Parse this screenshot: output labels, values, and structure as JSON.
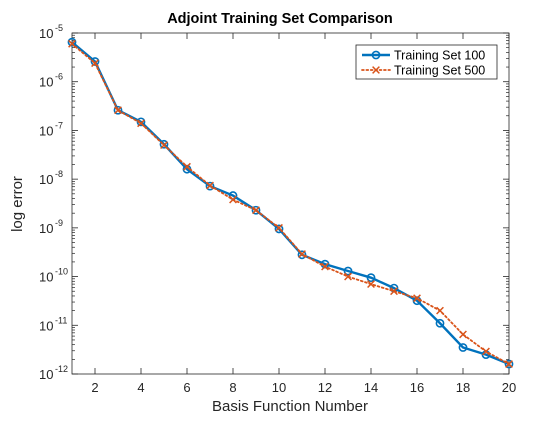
{
  "chart_data": {
    "type": "line",
    "title": "Adjoint Training Set Comparison",
    "xlabel": "Basis Function Number",
    "ylabel": "log error",
    "x": [
      1,
      2,
      3,
      4,
      5,
      6,
      7,
      8,
      9,
      10,
      11,
      12,
      13,
      14,
      15,
      16,
      17,
      18,
      19,
      20
    ],
    "xlim": [
      1,
      20
    ],
    "xticks": [
      2,
      4,
      6,
      8,
      10,
      12,
      14,
      16,
      18,
      20
    ],
    "yscale": "log",
    "ylim": [
      1e-12,
      1e-05
    ],
    "yticks": [
      {
        "value": 1e-12,
        "base": "10",
        "exp": "-12"
      },
      {
        "value": 1e-11,
        "base": "10",
        "exp": "-11"
      },
      {
        "value": 1e-10,
        "base": "10",
        "exp": "-10"
      },
      {
        "value": 1e-09,
        "base": "10",
        "exp": "-9"
      },
      {
        "value": 1e-08,
        "base": "10",
        "exp": "-8"
      },
      {
        "value": 1e-07,
        "base": "10",
        "exp": "-7"
      },
      {
        "value": 1e-06,
        "base": "10",
        "exp": "-6"
      },
      {
        "value": 1e-05,
        "base": "10",
        "exp": "-5"
      }
    ],
    "grid": false,
    "legend_position": "top-right",
    "series": [
      {
        "name": "Training Set 100",
        "color": "#0072BD",
        "line": "solid",
        "marker": "circle",
        "values": [
          6.5e-06,
          2.6e-06,
          2.6e-07,
          1.5e-07,
          5.2e-08,
          1.6e-08,
          7.2e-09,
          4.6e-09,
          2.3e-09,
          9.5e-10,
          2.8e-10,
          1.8e-10,
          1.3e-10,
          9.5e-11,
          5.8e-11,
          3.2e-11,
          1.1e-11,
          3.5e-12,
          2.5e-12,
          1.6e-12
        ]
      },
      {
        "name": "Training Set 500",
        "color": "#D95319",
        "line": "dotted",
        "marker": "x",
        "values": [
          6e-06,
          2.4e-06,
          2.6e-07,
          1.4e-07,
          5e-08,
          1.8e-08,
          7.4e-09,
          3.8e-09,
          2.3e-09,
          1e-09,
          2.9e-10,
          1.6e-10,
          1e-10,
          7e-11,
          5e-11,
          3.6e-11,
          2e-11,
          6.5e-12,
          2.9e-12,
          1.6e-12
        ]
      }
    ]
  }
}
